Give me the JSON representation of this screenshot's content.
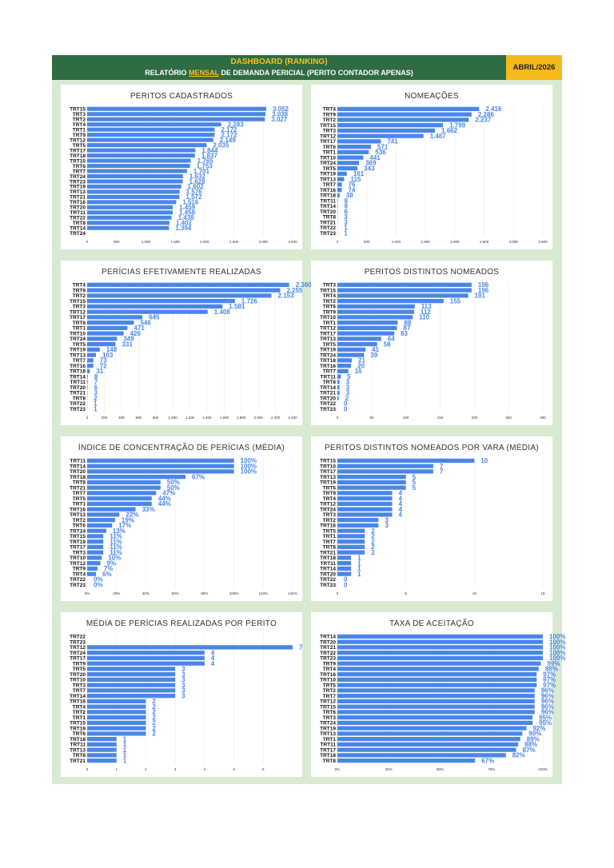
{
  "header": {
    "title": "DASHBOARD (RANKING)",
    "subtitle_before": "RELATÓRIO ",
    "subtitle_highlight": "MENSAL",
    "subtitle_after": " DE DEMANDA PERICIAL (PERITO CONTADOR APENAS)",
    "date": "ABRIL/2026"
  },
  "colors": {
    "bar": "#4a86e8",
    "header_bg": "#2f6b43",
    "header_accent": "#f7c317",
    "date_bg": "#f6b91a",
    "dashboard_bg": "#d9ead3"
  },
  "chart_data": [
    {
      "type": "bar",
      "orientation": "horizontal",
      "title": "PERITOS CADASTRADOS",
      "categories": [
        "TRT15",
        "TRT3",
        "TRT2",
        "TRT4",
        "TRT1",
        "TRT9",
        "TRT12",
        "TRT5",
        "TRT17",
        "TRT18",
        "TRT10",
        "TRT6",
        "TRT7",
        "TRT24",
        "TRT23",
        "TRT19",
        "TRT13",
        "TRT21",
        "TRT16",
        "TRT20",
        "TRT11",
        "TRT22",
        "TRT8",
        "TRT14",
        "TRT24"
      ],
      "values": [
        3052,
        3038,
        3027,
        2283,
        2172,
        2172,
        2149,
        2035,
        1844,
        1837,
        1765,
        1753,
        1701,
        1632,
        1628,
        1602,
        1576,
        1572,
        1516,
        1459,
        1458,
        1438,
        1402,
        1394,
        null
      ],
      "labels": [
        "3.052",
        "3.038",
        "3.027",
        "2.283",
        "2.172",
        "2.172",
        "2.149",
        "2.035",
        "1.844",
        "1.837",
        "1.765",
        "1.753",
        "1.701",
        "1.632",
        "1.628",
        "1.602",
        "1.576",
        "1.572",
        "1.516",
        "1.459",
        "1.458",
        "1.438",
        "1.402",
        "1.394",
        ""
      ],
      "xlim": [
        0,
        3500
      ],
      "ticks": [
        0,
        500,
        1000,
        1500,
        2000,
        2500,
        3000,
        3500
      ],
      "tick_labels": [
        "0",
        "500",
        "1.000",
        "1.500",
        "2.000",
        "2.500",
        "3.000",
        "3.500"
      ]
    },
    {
      "type": "bar",
      "orientation": "horizontal",
      "title": "NOMEAÇÕES",
      "categories": [
        "TRT4",
        "TRT9",
        "TRT2",
        "TRT15",
        "TRT3",
        "TRT12",
        "TRT17",
        "TRT6",
        "TRT1",
        "TRT10",
        "TRT24",
        "TRT5",
        "TRT19",
        "TRT13",
        "TRT7",
        "TRT16",
        "TRT18",
        "TRT11",
        "TRT14",
        "TRT20",
        "TRT8",
        "TRT21",
        "TRT22",
        "TRT23"
      ],
      "values": [
        2416,
        2286,
        2237,
        1799,
        1662,
        1467,
        741,
        571,
        536,
        441,
        369,
        343,
        161,
        115,
        76,
        74,
        38,
        8,
        8,
        6,
        3,
        3,
        1,
        1
      ],
      "labels": [
        "2.416",
        "2.286",
        "2.237",
        "1.799",
        "1.662",
        "1.467",
        "741",
        "571",
        "536",
        "441",
        "369",
        "343",
        "161",
        "115",
        "76",
        "74",
        "38",
        "8",
        "8",
        "6",
        "3",
        "3",
        "1",
        "1"
      ],
      "xlim": [
        0,
        3500
      ],
      "ticks": [
        0,
        500,
        1000,
        1500,
        2000,
        2500,
        3000,
        3500
      ],
      "tick_labels": [
        "0",
        "500",
        "1.000",
        "1.500",
        "2.000",
        "2.500",
        "3.000",
        "3.500"
      ]
    },
    {
      "type": "bar",
      "orientation": "horizontal",
      "title": "PERÍCIAS EFETIVAMENTE REALIZADAS",
      "categories": [
        "TRT4",
        "TRT9",
        "TRT2",
        "TRT15",
        "TRT3",
        "TRT12",
        "TRT17",
        "TRT6",
        "TRT1",
        "TRT10",
        "TRT24",
        "TRT5",
        "TRT19",
        "TRT13",
        "TRT7",
        "TRT16",
        "TRT18",
        "TRT14",
        "TRT11",
        "TRT20",
        "TRT21",
        "TRT8",
        "TRT22",
        "TRT23"
      ],
      "values": [
        2360,
        2255,
        2153,
        1726,
        1581,
        1408,
        645,
        546,
        471,
        426,
        349,
        331,
        148,
        103,
        73,
        72,
        31,
        8,
        7,
        6,
        3,
        2,
        1,
        1
      ],
      "labels": [
        "2.360",
        "2.255",
        "2.153",
        "1.726",
        "1.581",
        "1.408",
        "645",
        "546",
        "471",
        "426",
        "349",
        "331",
        "148",
        "103",
        "73",
        "72",
        "31",
        "8",
        "7",
        "6",
        "3",
        "2",
        "1",
        "1"
      ],
      "xlim": [
        0,
        2400
      ],
      "ticks": [
        0,
        200,
        400,
        600,
        800,
        1000,
        1200,
        1400,
        1600,
        1800,
        2000,
        2200,
        2400
      ],
      "tick_labels": [
        "0",
        "200",
        "400",
        "600",
        "800",
        "1.000",
        "1.200",
        "1.400",
        "1.600",
        "1.800",
        "2.000",
        "2.200",
        "2.400"
      ]
    },
    {
      "type": "bar",
      "orientation": "horizontal",
      "title": "PERITOS DISTINTOS NOMEADOS",
      "categories": [
        "TRT3",
        "TRT15",
        "TRT4",
        "TRT2",
        "TRT6",
        "TRT9",
        "TRT10",
        "TRT1",
        "TRT12",
        "TRT17",
        "TRT13",
        "TRT5",
        "TRT19",
        "TRT24",
        "TRT18",
        "TRT16",
        "TRT7",
        "TRT11",
        "TRT8",
        "TRT14",
        "TRT21",
        "TRT20",
        "TRT22",
        "TRT23"
      ],
      "values": [
        196,
        196,
        191,
        155,
        113,
        112,
        110,
        88,
        87,
        83,
        64,
        58,
        41,
        39,
        21,
        20,
        16,
        5,
        3,
        3,
        3,
        2,
        0,
        0
      ],
      "labels": [
        "196",
        "196",
        "191",
        "155",
        "113",
        "112",
        "110",
        "88",
        "87",
        "83",
        "64",
        "58",
        "41",
        "39",
        "21",
        "20",
        "16",
        "5",
        "3",
        "3",
        "3",
        "2",
        "0",
        "0"
      ],
      "xlim": [
        0,
        300
      ],
      "ticks": [
        0,
        50,
        100,
        150,
        200,
        250,
        300
      ],
      "tick_labels": [
        "0",
        "50",
        "100",
        "150",
        "200",
        "250",
        "300"
      ]
    },
    {
      "type": "bar",
      "orientation": "horizontal",
      "title": "ÍNDICE DE CONCENTRAÇÃO DE PERÍCIAS (MÉDIA)",
      "categories": [
        "TRT11",
        "TRT14",
        "TRT20",
        "TRT18",
        "TRT8",
        "TRT21",
        "TRT7",
        "TRT5",
        "TRT1",
        "TRT16",
        "TRT13",
        "TRT2",
        "TRT6",
        "TRT24",
        "TRT15",
        "TRT19",
        "TRT17",
        "TRT3",
        "TRT10",
        "TRT12",
        "TRT9",
        "TRT4",
        "TRT22",
        "TRT23"
      ],
      "values": [
        100,
        100,
        100,
        67,
        50,
        50,
        47,
        44,
        44,
        33,
        22,
        19,
        17,
        13,
        11,
        11,
        11,
        11,
        10,
        9,
        7,
        6,
        0,
        0
      ],
      "labels": [
        "100%",
        "100%",
        "100%",
        "67%",
        "50%",
        "50%",
        "47%",
        "44%",
        "44%",
        "33%",
        "22%",
        "19%",
        "17%",
        "13%",
        "11%",
        "11%",
        "11%",
        "11%",
        "10%",
        "9%",
        "7%",
        "6%",
        "0%",
        "0%"
      ],
      "xlim": [
        0,
        140
      ],
      "ticks": [
        0,
        20,
        40,
        60,
        80,
        100,
        120,
        140
      ],
      "tick_labels": [
        "0%",
        "20%",
        "40%",
        "60%",
        "80%",
        "100%",
        "120%",
        "140%"
      ]
    },
    {
      "type": "bar",
      "orientation": "horizontal",
      "title": "PERITOS DISTINTOS NOMEADOS POR VARA (MÉDIA)",
      "categories": [
        "TRT15",
        "TRT10",
        "TRT17",
        "TRT13",
        "TRT19",
        "TRT6",
        "TRT9",
        "TRT4",
        "TRT12",
        "TRT24",
        "TRT3",
        "TRT2",
        "TRT16",
        "TRT5",
        "TRT1",
        "TRT7",
        "TRT8",
        "TRT21",
        "TRT18",
        "TRT11",
        "TRT14",
        "TRT20",
        "TRT22",
        "TRT23"
      ],
      "values": [
        10,
        7,
        7,
        5,
        5,
        5,
        4,
        4,
        4,
        4,
        4,
        3,
        3,
        2,
        2,
        2,
        2,
        2,
        1,
        1,
        1,
        1,
        0,
        0
      ],
      "labels": [
        "10",
        "7",
        "7",
        "5",
        "5",
        "5",
        "4",
        "4",
        "4",
        "4",
        "4",
        "3",
        "3",
        "2",
        "2",
        "2",
        "2",
        "2",
        "1",
        "1",
        "1",
        "1",
        "0",
        "0"
      ],
      "xlim": [
        0,
        15
      ],
      "ticks": [
        0,
        5,
        10,
        15
      ],
      "tick_labels": [
        "0",
        "5",
        "10",
        "15"
      ]
    },
    {
      "type": "bar",
      "orientation": "horizontal",
      "title": "MÉDIA DE PERÍCIAS REALIZADAS POR PERITO",
      "categories": [
        "TRT22",
        "TRT23",
        "TRT12",
        "TRT24",
        "TRT17",
        "TRT9",
        "TRT5",
        "TRT20",
        "TRT10",
        "TRT3",
        "TRT7",
        "TRT14",
        "TRT16",
        "TRT4",
        "TRT2",
        "TRT1",
        "TRT15",
        "TRT19",
        "TRT6",
        "TRT18",
        "TRT11",
        "TRT13",
        "TRT8",
        "TRT21"
      ],
      "values": [
        null,
        null,
        7,
        4,
        4,
        4,
        3,
        3,
        3,
        3,
        3,
        3,
        2,
        2,
        2,
        2,
        2,
        2,
        2,
        1,
        1,
        1,
        1,
        1
      ],
      "labels": [
        "",
        "",
        "7",
        "4",
        "4",
        "4",
        "3",
        "3",
        "3",
        "3",
        "3",
        "3",
        "2",
        "2",
        "2",
        "2",
        "2",
        "2",
        "2",
        "1",
        "1",
        "1",
        "1",
        "1"
      ],
      "xlim": [
        0,
        7
      ],
      "ticks": [
        0,
        1,
        2,
        3,
        4,
        5,
        6
      ],
      "tick_labels": [
        "0",
        "1",
        "2",
        "3",
        "4",
        "5",
        "6"
      ]
    },
    {
      "type": "bar",
      "orientation": "horizontal",
      "title": "TAXA DE ACEITAÇÃO",
      "categories": [
        "TRT14",
        "TRT20",
        "TRT21",
        "TRT22",
        "TRT23",
        "TRT9",
        "TRT4",
        "TRT16",
        "TRT10",
        "TRT5",
        "TRT2",
        "TRT7",
        "TRT12",
        "TRT15",
        "TRT6",
        "TRT3",
        "TRT24",
        "TRT19",
        "TRT13",
        "TRT1",
        "TRT11",
        "TRT17",
        "TRT18",
        "TRT8"
      ],
      "values": [
        100,
        100,
        100,
        100,
        100,
        99,
        98,
        97,
        97,
        97,
        96,
        96,
        96,
        96,
        96,
        95,
        95,
        92,
        90,
        89,
        88,
        87,
        82,
        67
      ],
      "labels": [
        "100%",
        "100%",
        "100%",
        "100%",
        "100%",
        "99%",
        "98%",
        "97%",
        "97%",
        "97%",
        "96%",
        "96%",
        "96%",
        "96%",
        "96%",
        "95%",
        "95%",
        "92%",
        "90%",
        "89%",
        "88%",
        "87%",
        "82%",
        "67%"
      ],
      "xlim": [
        0,
        100
      ],
      "ticks": [
        0,
        25,
        50,
        75,
        100
      ],
      "tick_labels": [
        "0%",
        "25%",
        "50%",
        "75%",
        "100%"
      ]
    }
  ]
}
